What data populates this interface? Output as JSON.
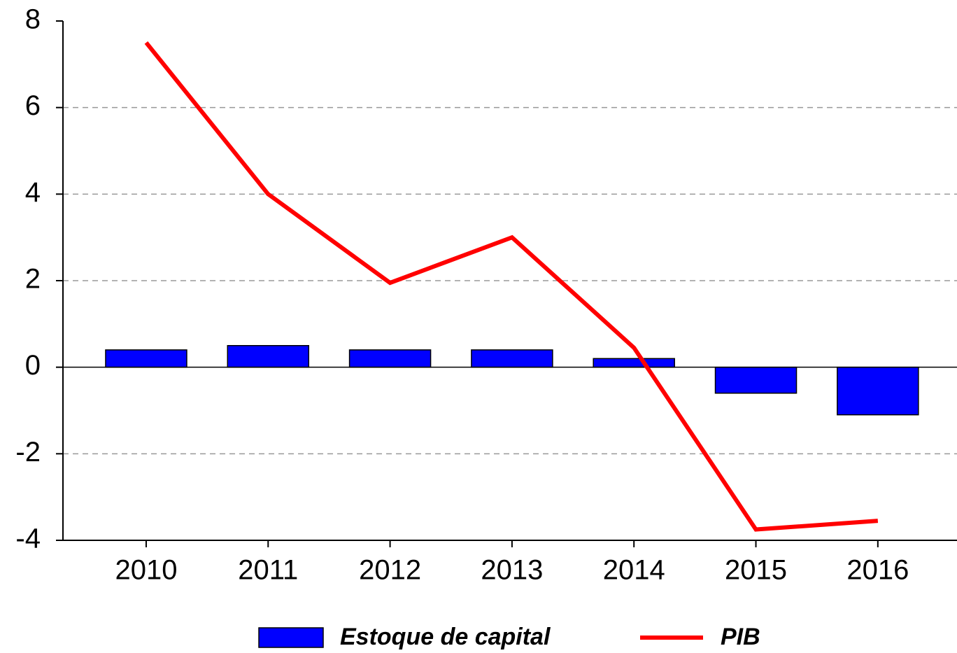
{
  "chart_data": {
    "type": "bar_line",
    "categories": [
      "2010",
      "2011",
      "2012",
      "2013",
      "2014",
      "2015",
      "2016"
    ],
    "series": [
      {
        "name": "Estoque de capital",
        "type": "bar",
        "color": "#0000ff",
        "values": [
          0.4,
          0.5,
          0.4,
          0.4,
          0.2,
          -0.6,
          -1.1
        ]
      },
      {
        "name": "PIB",
        "type": "line",
        "color": "#ff0000",
        "values": [
          7.5,
          4.0,
          1.95,
          3.0,
          0.45,
          -3.75,
          -3.55
        ]
      }
    ],
    "ylim": [
      -4,
      8
    ],
    "yticks": [
      -4,
      -2,
      0,
      2,
      4,
      6,
      8
    ],
    "grid": true,
    "legend": "bottom"
  }
}
